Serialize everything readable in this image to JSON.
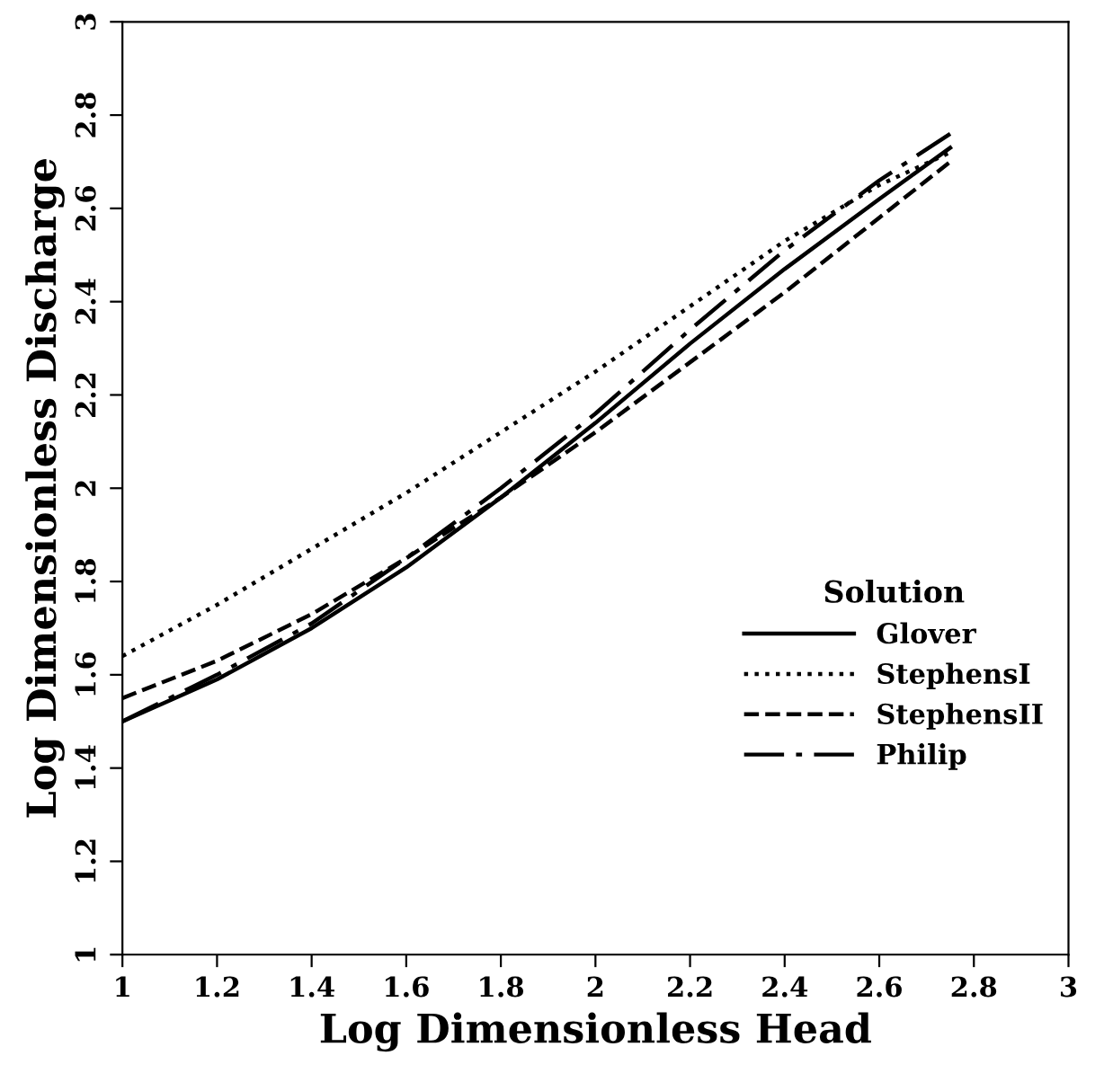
{
  "chart_data": {
    "type": "line",
    "xlabel": "Log Dimensionless Head",
    "ylabel": "Log Dimensionless Discharge",
    "legend_title": "Solution",
    "legend": "right",
    "x": [
      1,
      1.2,
      1.4,
      1.6,
      1.8,
      2.0,
      2.2,
      2.4,
      2.6,
      2.75
    ],
    "series": [
      {
        "name": "Glover",
        "color": "#000000",
        "line_style": "solid",
        "values": [
          1.5,
          1.59,
          1.7,
          1.83,
          1.98,
          2.14,
          2.31,
          2.47,
          2.62,
          2.73
        ]
      },
      {
        "name": "StephensI",
        "color": "#000000",
        "line_style": "dotted",
        "values": [
          1.64,
          1.75,
          1.87,
          1.99,
          2.12,
          2.25,
          2.39,
          2.53,
          2.65,
          2.72
        ]
      },
      {
        "name": "StephensII",
        "color": "#000000",
        "line_style": "dashed",
        "values": [
          1.55,
          1.63,
          1.73,
          1.85,
          1.98,
          2.12,
          2.27,
          2.42,
          2.58,
          2.7
        ]
      },
      {
        "name": "Philip",
        "color": "#000000",
        "line_style": "dashdot",
        "values": [
          1.5,
          1.6,
          1.71,
          1.85,
          2.0,
          2.16,
          2.34,
          2.51,
          2.66,
          2.76
        ]
      }
    ],
    "xlim": [
      1,
      3
    ],
    "ylim": [
      1,
      3
    ],
    "xticks": [
      1,
      1.2,
      1.4,
      1.6,
      1.8,
      2,
      2.2,
      2.4,
      2.6,
      2.8,
      3
    ],
    "yticks": [
      1,
      1.2,
      1.4,
      1.6,
      1.8,
      2,
      2.2,
      2.4,
      2.6,
      2.8,
      3
    ],
    "grid": false,
    "marker": "none"
  }
}
